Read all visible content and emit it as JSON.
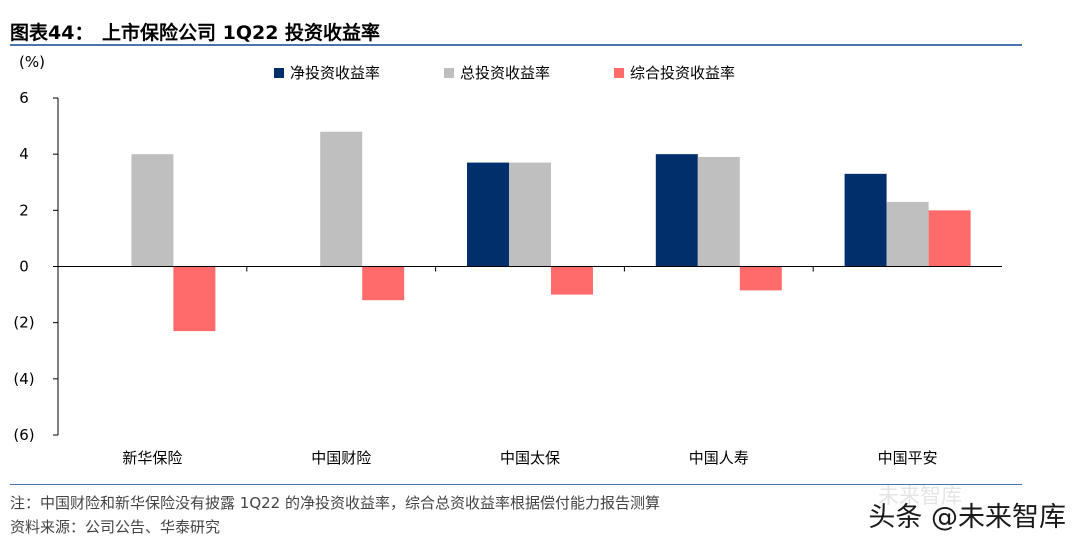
{
  "header": {
    "figure_label": "图表44：",
    "title": "上市保险公司 1Q22 投资收益率"
  },
  "chart_data": {
    "type": "bar",
    "title": "上市保险公司 1Q22 投资收益率",
    "ylabel": "(%)",
    "xlabel": "",
    "ylim": [
      -6,
      6
    ],
    "yticks": [
      6,
      4,
      2,
      0,
      -2,
      -4,
      -6
    ],
    "ytick_labels": [
      "6",
      "4",
      "2",
      "0",
      "(2)",
      "(4)",
      "(6)"
    ],
    "categories": [
      "新华保险",
      "中国财险",
      "中国太保",
      "中国人寿",
      "中国平安"
    ],
    "series": [
      {
        "name": "净投资收益率",
        "color": "#002f6c",
        "values": [
          null,
          null,
          3.7,
          4.0,
          3.3
        ]
      },
      {
        "name": "总投资收益率",
        "color": "#bfbfbf",
        "values": [
          4.0,
          4.8,
          3.7,
          3.9,
          2.3
        ]
      },
      {
        "name": "综合投资收益率",
        "color": "#ff6b6b",
        "values": [
          -2.3,
          -1.2,
          -1.0,
          -0.85,
          2.0
        ]
      }
    ],
    "legend_position": "top",
    "grid": false
  },
  "footer": {
    "note": "注：中国财险和新华保险没有披露 1Q22 的净投资收益率，综合总资收益率根据偿付能力报告测算",
    "source": "资料来源：公司公告、华泰研究"
  },
  "watermark": {
    "main": "头条 @未来智库",
    "faint": "未来智库"
  }
}
